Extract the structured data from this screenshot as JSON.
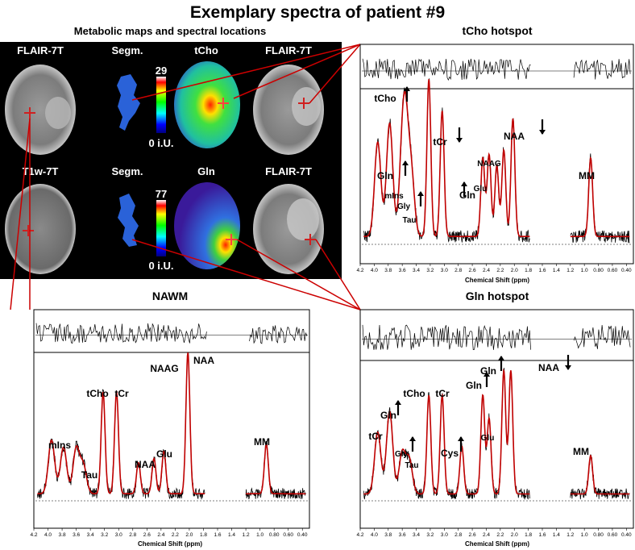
{
  "figure": {
    "title": "Exemplary spectra of patient #9",
    "maps_heading": "Metabolic maps and spectral locations"
  },
  "maps": {
    "row1": {
      "flair_left_label": "FLAIR-7T",
      "segm_label": "Segm.",
      "metabolite_label": "tCho",
      "flair_right_label": "FLAIR-7T",
      "scale_max": "29",
      "scale_min": "0 i.U."
    },
    "row2": {
      "t1_label": "T1w-7T",
      "segm_label": "Segm.",
      "metabolite_label": "Gln",
      "flair_right_label": "FLAIR-7T",
      "scale_max": "77",
      "scale_min": "0 i.U."
    }
  },
  "colors": {
    "fit_line": "#c00000",
    "spectrum_line": "#000000",
    "connector_line": "#cc0000",
    "map_background": "#000000",
    "segmentation": "#1f5fd0"
  },
  "chart_data": [
    {
      "type": "line",
      "title": "tCho hotspot",
      "xlabel": "Chemical Shift (ppm)",
      "x_ticks": [
        "4.2",
        "4.0",
        "3.8",
        "3.6",
        "3.4",
        "3.2",
        "3.0",
        "2.8",
        "2.6",
        "2.4",
        "2.2",
        "2.0",
        "1.8",
        "1.6",
        "1.4",
        "1.2",
        "1.0",
        "0.80",
        "0.60",
        "0.40"
      ],
      "xlim": [
        4.2,
        0.3
      ],
      "series": [
        {
          "values": [
            [
              3.95,
              0.6
            ],
            [
              3.78,
              0.72
            ],
            [
              3.6,
              0.45
            ],
            [
              3.55,
              0.58
            ],
            [
              3.47,
              0.38
            ],
            [
              3.22,
              1.0
            ],
            [
              3.03,
              0.8
            ],
            [
              2.45,
              0.5
            ],
            [
              2.36,
              0.52
            ],
            [
              2.25,
              0.45
            ],
            [
              2.15,
              0.55
            ],
            [
              2.02,
              0.75
            ],
            [
              0.91,
              0.5
            ]
          ]
        }
      ],
      "annotations": [
        {
          "label": "tCho",
          "arrow": "up"
        },
        {
          "label": "tCr",
          "arrow": "down"
        },
        {
          "label": "NAA",
          "arrow": "down"
        },
        {
          "label": "NAAG",
          "arrow": ""
        },
        {
          "label": "Gln",
          "arrow": "up"
        },
        {
          "label": "mIns",
          "arrow": ""
        },
        {
          "label": "Gly",
          "arrow": "up"
        },
        {
          "label": "Tau",
          "arrow": ""
        },
        {
          "label": "Gln",
          "arrow": "up"
        },
        {
          "label": "Glu",
          "arrow": ""
        },
        {
          "label": "MM",
          "arrow": ""
        }
      ]
    },
    {
      "type": "line",
      "title": "NAWM",
      "xlabel": "Chemical Shift (ppm)",
      "x_ticks": [
        "4.2",
        "4.0",
        "3.8",
        "3.6",
        "3.4",
        "3.2",
        "3.0",
        "2.8",
        "2.6",
        "2.4",
        "2.2",
        "2.0",
        "1.8",
        "1.6",
        "1.4",
        "1.2",
        "1.0",
        "0.80",
        "0.60",
        "0.40"
      ],
      "xlim": [
        4.2,
        0.3
      ],
      "series": [
        {
          "values": [
            [
              3.95,
              0.38
            ],
            [
              3.78,
              0.33
            ],
            [
              3.6,
              0.32
            ],
            [
              3.5,
              0.2
            ],
            [
              3.22,
              0.72
            ],
            [
              3.03,
              0.72
            ],
            [
              2.72,
              0.22
            ],
            [
              2.5,
              0.25
            ],
            [
              2.36,
              0.3
            ],
            [
              2.02,
              1.0
            ],
            [
              0.91,
              0.35
            ]
          ]
        }
      ],
      "annotations": [
        {
          "label": "NAAG",
          "arrow": ""
        },
        {
          "label": "NAA",
          "arrow": ""
        },
        {
          "label": "tCho",
          "arrow": ""
        },
        {
          "label": "tCr",
          "arrow": ""
        },
        {
          "label": "mIns",
          "arrow": ""
        },
        {
          "label": "Tau",
          "arrow": ""
        },
        {
          "label": "NAA",
          "arrow": ""
        },
        {
          "label": "Glu",
          "arrow": ""
        },
        {
          "label": "MM",
          "arrow": ""
        }
      ]
    },
    {
      "type": "line",
      "title": "Gln hotspot",
      "xlabel": "Chemical Shift (ppm)",
      "x_ticks": [
        "4.2",
        "4.0",
        "3.8",
        "3.6",
        "3.4",
        "3.2",
        "3.0",
        "2.8",
        "2.6",
        "2.4",
        "2.2",
        "2.0",
        "1.8",
        "1.6",
        "1.4",
        "1.2",
        "1.0",
        "0.80",
        "0.60",
        "0.40"
      ],
      "xlim": [
        4.2,
        0.3
      ],
      "series": [
        {
          "values": [
            [
              3.95,
              0.45
            ],
            [
              3.78,
              0.6
            ],
            [
              3.6,
              0.3
            ],
            [
              3.5,
              0.25
            ],
            [
              3.22,
              0.72
            ],
            [
              3.03,
              0.72
            ],
            [
              2.75,
              0.35
            ],
            [
              2.45,
              0.72
            ],
            [
              2.36,
              0.55
            ],
            [
              2.15,
              0.9
            ],
            [
              2.05,
              0.9
            ],
            [
              0.91,
              0.28
            ]
          ]
        }
      ],
      "annotations": [
        {
          "label": "tCr",
          "arrow": ""
        },
        {
          "label": "Gln",
          "arrow": "up"
        },
        {
          "label": "Gly",
          "arrow": "up"
        },
        {
          "label": "Tau",
          "arrow": ""
        },
        {
          "label": "tCho",
          "arrow": ""
        },
        {
          "label": "tCr",
          "arrow": ""
        },
        {
          "label": "Cys",
          "arrow": "up"
        },
        {
          "label": "Gln",
          "arrow": "up"
        },
        {
          "label": "Glu",
          "arrow": ""
        },
        {
          "label": "Gln",
          "arrow": "up"
        },
        {
          "label": "NAA",
          "arrow": "down"
        },
        {
          "label": "MM",
          "arrow": ""
        }
      ]
    }
  ]
}
